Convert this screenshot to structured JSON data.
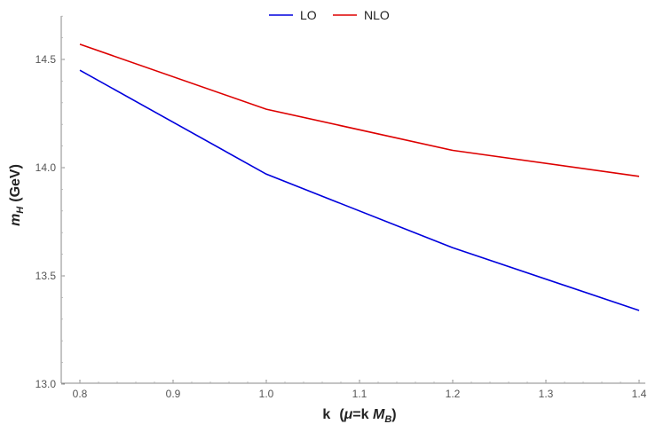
{
  "chart_data": {
    "type": "line",
    "title": "",
    "xlabel": "k  (μ=k M_B)",
    "ylabel": "m_H (GeV)",
    "x": [
      0.8,
      1.0,
      1.2,
      1.4
    ],
    "series": [
      {
        "name": "LO",
        "color": "#0000dd",
        "values": [
          14.45,
          13.97,
          13.63,
          13.34
        ]
      },
      {
        "name": "NLO",
        "color": "#dd0000",
        "values": [
          14.57,
          14.27,
          14.08,
          13.96
        ]
      }
    ],
    "xlim": [
      0.8,
      1.4
    ],
    "ylim": [
      13.0,
      14.5
    ],
    "xticks": [
      "0.8",
      "0.9",
      "1.0",
      "1.1",
      "1.2",
      "1.3",
      "1.4"
    ],
    "yticks": [
      "13.0",
      "13.5",
      "14.0",
      "14.5"
    ],
    "legend_position": "top-center",
    "grid": false
  },
  "axis": {
    "x_main": "k",
    "x_paren_open": "(",
    "x_mu": "μ",
    "x_eq_k": "=k ",
    "x_M": "M",
    "x_sub": "B",
    "x_paren_close": ")",
    "y_m": "m",
    "y_sub": "H",
    "y_unit": "(GeV)"
  }
}
